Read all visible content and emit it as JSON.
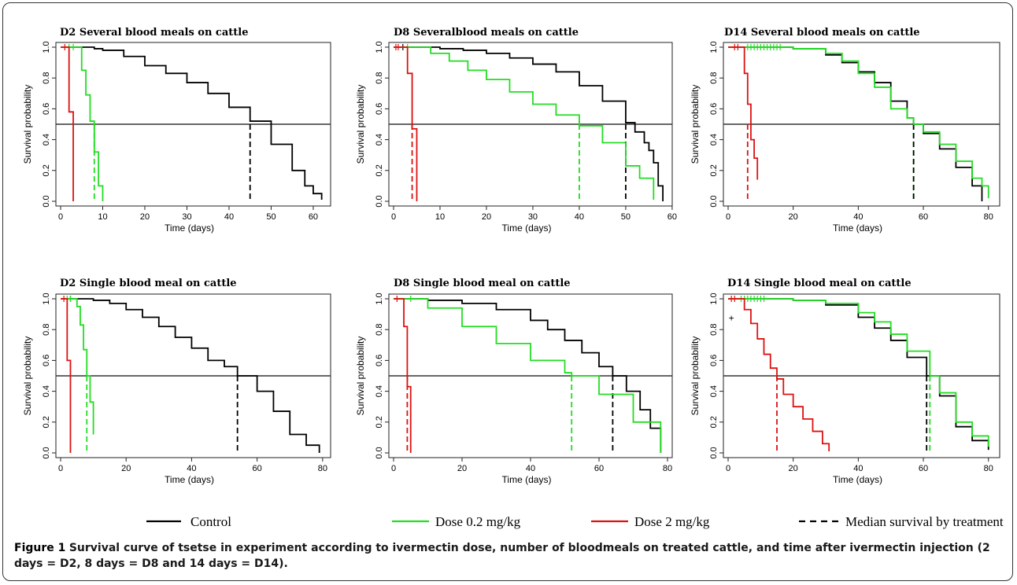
{
  "caption": {
    "label": "Figure 1",
    "text": "Survival curve of tsetse in experiment according to ivermectin dose, number of bloodmeals on treated cattle, and time after ivermectin injection (2 days = D2, 8 days = D8 and 14 days = D14)."
  },
  "colors": {
    "control": "#000000",
    "dose_low": "#22dd22",
    "dose_high": "#dd1111",
    "median_line": "#333333"
  },
  "legend": {
    "placement": "bottom-center",
    "items": [
      {
        "label": "Control",
        "style": "solid",
        "color": "#000000"
      },
      {
        "label": "Dose 0.2 mg/kg",
        "style": "solid",
        "color": "#22dd22"
      },
      {
        "label": "Dose 2 mg/kg",
        "style": "solid",
        "color": "#dd1111"
      },
      {
        "label": "Median survival by treatment",
        "style": "dashed",
        "color": "#000000"
      }
    ]
  },
  "chart_data": [
    {
      "type": "line",
      "title": "D2 Several blood meals on cattle",
      "xlabel": "Time (days)",
      "ylabel": "Survival probability",
      "xlim": [
        0,
        63
      ],
      "ylim": [
        0,
        1
      ],
      "xticks": [
        0,
        10,
        20,
        30,
        40,
        50,
        60
      ],
      "yticks": [
        0,
        0.2,
        0.4,
        0.6,
        0.8,
        1.0
      ],
      "reference_line_y": 0.5,
      "medians": {
        "control": 45,
        "dose_low": 8,
        "dose_high": null
      },
      "series": [
        {
          "key": "control",
          "x": [
            0,
            5,
            8,
            10,
            15,
            20,
            25,
            30,
            35,
            40,
            45,
            50,
            55,
            58,
            60,
            62
          ],
          "y": [
            1.0,
            1.0,
            0.99,
            0.98,
            0.94,
            0.88,
            0.83,
            0.77,
            0.7,
            0.61,
            0.52,
            0.37,
            0.2,
            0.1,
            0.05,
            0.01
          ],
          "censored": []
        },
        {
          "key": "dose_low",
          "x": [
            0,
            4,
            5,
            6,
            7,
            8,
            9,
            10
          ],
          "y": [
            1.0,
            1.0,
            0.85,
            0.69,
            0.52,
            0.32,
            0.1,
            0.0
          ],
          "censored": [
            2,
            3
          ]
        },
        {
          "key": "dose_high",
          "x": [
            0,
            1,
            2,
            3
          ],
          "y": [
            1.0,
            1.0,
            0.58,
            0.0
          ],
          "censored": [
            1
          ]
        }
      ]
    },
    {
      "type": "line",
      "title": "D8 Severalblood meals on cattle",
      "xlabel": "Time (days)",
      "ylabel": "Survival probability",
      "xlim": [
        0,
        59
      ],
      "ylim": [
        0,
        1
      ],
      "xticks": [
        0,
        10,
        20,
        30,
        40,
        50,
        60
      ],
      "yticks": [
        0,
        0.2,
        0.4,
        0.6,
        0.8,
        1.0
      ],
      "reference_line_y": 0.5,
      "medians": {
        "control": 50,
        "dose_low": 40,
        "dose_high": 4
      },
      "series": [
        {
          "key": "control",
          "x": [
            0,
            5,
            10,
            15,
            20,
            25,
            30,
            35,
            40,
            45,
            50,
            52,
            54,
            55,
            56,
            57,
            58
          ],
          "y": [
            1.0,
            1.0,
            0.99,
            0.98,
            0.96,
            0.93,
            0.89,
            0.84,
            0.75,
            0.65,
            0.51,
            0.45,
            0.38,
            0.33,
            0.25,
            0.1,
            0.0
          ],
          "censored": [
            2
          ]
        },
        {
          "key": "dose_low",
          "x": [
            0,
            4,
            8,
            12,
            16,
            20,
            25,
            30,
            35,
            40,
            45,
            50,
            53,
            56
          ],
          "y": [
            1.0,
            1.0,
            0.96,
            0.91,
            0.85,
            0.79,
            0.71,
            0.63,
            0.56,
            0.49,
            0.38,
            0.23,
            0.15,
            0.01
          ],
          "censored": [
            3
          ]
        },
        {
          "key": "dose_high",
          "x": [
            0,
            2,
            3,
            4,
            5
          ],
          "y": [
            1.0,
            1.0,
            0.83,
            0.47,
            0.0
          ],
          "censored": [
            0.5,
            1
          ]
        }
      ]
    },
    {
      "type": "line",
      "title": "D14 Several blood meals on cattle",
      "xlabel": "Time (days)",
      "ylabel": "Survival probability",
      "xlim": [
        0,
        82
      ],
      "ylim": [
        0,
        1
      ],
      "xticks": [
        0,
        20,
        40,
        60,
        80
      ],
      "yticks": [
        0,
        0.2,
        0.4,
        0.6,
        0.8,
        1.0
      ],
      "reference_line_y": 0.5,
      "medians": {
        "control": 57,
        "dose_low": 57,
        "dose_high": 6
      },
      "series": [
        {
          "key": "control",
          "x": [
            0,
            10,
            20,
            30,
            35,
            40,
            45,
            50,
            55,
            57,
            60,
            65,
            70,
            75,
            78
          ],
          "y": [
            1.0,
            1.0,
            0.99,
            0.95,
            0.9,
            0.84,
            0.77,
            0.65,
            0.54,
            0.5,
            0.44,
            0.34,
            0.22,
            0.1,
            0.0
          ],
          "censored": []
        },
        {
          "key": "dose_low",
          "x": [
            0,
            10,
            20,
            30,
            35,
            40,
            45,
            50,
            55,
            57,
            60,
            65,
            70,
            75,
            78,
            80
          ],
          "y": [
            1.0,
            1.0,
            0.99,
            0.96,
            0.91,
            0.83,
            0.74,
            0.6,
            0.54,
            0.5,
            0.45,
            0.37,
            0.26,
            0.15,
            0.1,
            0.02
          ],
          "censored": [
            6,
            7,
            8,
            9,
            10,
            11,
            12,
            13,
            14,
            15,
            16
          ]
        },
        {
          "key": "dose_high",
          "x": [
            0,
            4,
            5,
            6,
            7,
            8,
            9
          ],
          "y": [
            1.0,
            1.0,
            0.83,
            0.63,
            0.4,
            0.28,
            0.14
          ],
          "censored": [
            2,
            3
          ]
        }
      ]
    },
    {
      "type": "line",
      "title": "D2 Single blood meal on cattle",
      "xlabel": "Time (days)",
      "ylabel": "Survival probability",
      "xlim": [
        0,
        81
      ],
      "ylim": [
        0,
        1
      ],
      "xticks": [
        0,
        20,
        40,
        60,
        80
      ],
      "yticks": [
        0,
        0.2,
        0.4,
        0.6,
        0.8,
        1.0
      ],
      "reference_line_y": 0.5,
      "medians": {
        "control": 54,
        "dose_low": 8,
        "dose_high": null
      },
      "series": [
        {
          "key": "control",
          "x": [
            0,
            5,
            10,
            15,
            20,
            25,
            30,
            35,
            40,
            45,
            50,
            54,
            60,
            65,
            70,
            75,
            79
          ],
          "y": [
            1.0,
            1.0,
            0.99,
            0.97,
            0.93,
            0.88,
            0.82,
            0.75,
            0.68,
            0.6,
            0.56,
            0.5,
            0.4,
            0.27,
            0.12,
            0.05,
            0.0
          ],
          "censored": [
            3
          ]
        },
        {
          "key": "dose_low",
          "x": [
            0,
            4,
            5,
            6,
            7,
            8,
            9,
            10
          ],
          "y": [
            1.0,
            1.0,
            0.95,
            0.83,
            0.67,
            0.5,
            0.33,
            0.12
          ],
          "censored": [
            2,
            3
          ]
        },
        {
          "key": "dose_high",
          "x": [
            0,
            1,
            2,
            3
          ],
          "y": [
            1.0,
            1.0,
            0.6,
            0.0
          ],
          "censored": [
            1
          ]
        }
      ]
    },
    {
      "type": "line",
      "title": "D8 Single blood meal on cattle",
      "xlabel": "Time (days)",
      "ylabel": "Survival probability",
      "xlim": [
        0,
        80
      ],
      "ylim": [
        0,
        1
      ],
      "xticks": [
        0,
        20,
        40,
        60,
        80
      ],
      "yticks": [
        0,
        0.2,
        0.4,
        0.6,
        0.8,
        1.0
      ],
      "reference_line_y": 0.5,
      "medians": {
        "control": 64,
        "dose_low": 52,
        "dose_high": 4
      },
      "series": [
        {
          "key": "control",
          "x": [
            0,
            5,
            10,
            20,
            30,
            40,
            45,
            50,
            55,
            60,
            64,
            68,
            72,
            75,
            78
          ],
          "y": [
            1.0,
            1.0,
            0.99,
            0.97,
            0.93,
            0.86,
            0.8,
            0.73,
            0.65,
            0.56,
            0.5,
            0.4,
            0.28,
            0.16,
            0.0
          ],
          "censored": []
        },
        {
          "key": "dose_low",
          "x": [
            0,
            5,
            10,
            20,
            30,
            40,
            50,
            52,
            60,
            70,
            78
          ],
          "y": [
            1.0,
            1.0,
            0.94,
            0.82,
            0.71,
            0.6,
            0.52,
            0.5,
            0.38,
            0.2,
            0.0
          ],
          "censored": [
            5
          ]
        },
        {
          "key": "dose_high",
          "x": [
            0,
            2,
            3,
            4,
            5
          ],
          "y": [
            1.0,
            1.0,
            0.82,
            0.43,
            0.0
          ],
          "censored": [
            1
          ]
        }
      ]
    },
    {
      "type": "line",
      "title": "D14 Single blood meal on cattle",
      "xlabel": "Time (days)",
      "ylabel": "Survival probability",
      "xlim": [
        0,
        82
      ],
      "ylim": [
        0,
        1
      ],
      "xticks": [
        0,
        20,
        40,
        60,
        80
      ],
      "yticks": [
        0,
        0.2,
        0.4,
        0.6,
        0.8,
        1.0
      ],
      "reference_line_y": 0.5,
      "medians": {
        "control": 61,
        "dose_low": 62,
        "dose_high": 15
      },
      "series": [
        {
          "key": "control",
          "x": [
            0,
            10,
            20,
            30,
            40,
            45,
            50,
            55,
            61,
            65,
            70,
            75,
            80
          ],
          "y": [
            1.0,
            1.0,
            0.99,
            0.96,
            0.88,
            0.81,
            0.73,
            0.62,
            0.5,
            0.37,
            0.17,
            0.08,
            0.02
          ],
          "censored": []
        },
        {
          "key": "dose_low",
          "x": [
            0,
            10,
            20,
            30,
            40,
            45,
            50,
            55,
            62,
            65,
            70,
            75,
            80
          ],
          "y": [
            1.0,
            1.0,
            0.99,
            0.97,
            0.91,
            0.85,
            0.77,
            0.66,
            0.5,
            0.39,
            0.2,
            0.11,
            0.04
          ],
          "censored": [
            4,
            5,
            6,
            7,
            8,
            9,
            10,
            11
          ]
        },
        {
          "key": "dose_high",
          "x": [
            0,
            3,
            5,
            7,
            9,
            11,
            13,
            15,
            17,
            20,
            23,
            26,
            29,
            31
          ],
          "y": [
            1.0,
            1.0,
            0.93,
            0.84,
            0.74,
            0.64,
            0.55,
            0.48,
            0.38,
            0.3,
            0.22,
            0.14,
            0.06,
            0.01
          ],
          "censored": [
            1,
            2
          ]
        }
      ],
      "annotations": [
        {
          "text": "+",
          "x": 1,
          "y": 0.88
        }
      ]
    }
  ]
}
